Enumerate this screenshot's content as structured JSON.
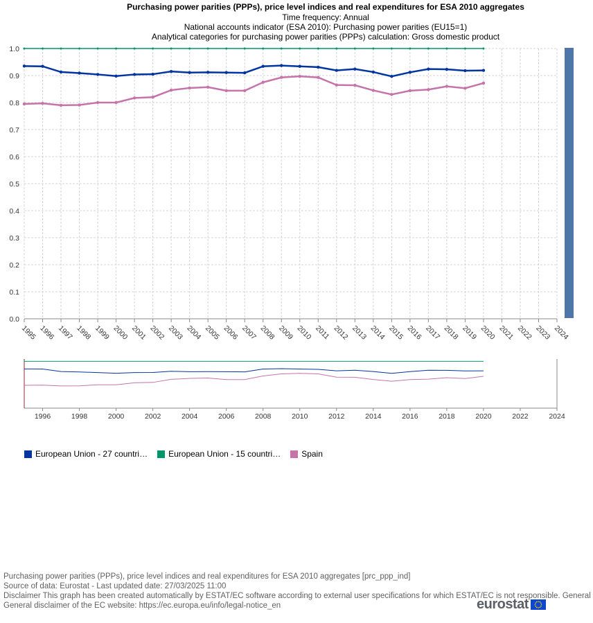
{
  "title": "Purchasing power parities (PPPs), price level indices and real expenditures for ESA 2010 aggregates",
  "subtitles": [
    "Time frequency:  Annual",
    "National accounts indicator (ESA 2010):  Purchasing power parities (EU15=1)",
    "Analytical categories for purchasing power parities (PPPs) calculation:  Gross domestic product"
  ],
  "chart_data": {
    "type": "line",
    "x": [
      1995,
      1996,
      1997,
      1998,
      1999,
      2000,
      2001,
      2002,
      2003,
      2004,
      2005,
      2006,
      2007,
      2008,
      2009,
      2010,
      2011,
      2012,
      2013,
      2014,
      2015,
      2016,
      2017,
      2018,
      2019,
      2020
    ],
    "xticks": [
      "1995",
      "1996",
      "1997",
      "1998",
      "1999",
      "2000",
      "2001",
      "2002",
      "2003",
      "2004",
      "2005",
      "2006",
      "2007",
      "2008",
      "2009",
      "2010",
      "2011",
      "2012",
      "2013",
      "2014",
      "2015",
      "2016",
      "2017",
      "2018",
      "2019",
      "2020",
      "2021",
      "2022",
      "2023",
      "2024"
    ],
    "xlim": [
      1995,
      2024
    ],
    "ylim": [
      0,
      1
    ],
    "yticks": [
      "0.0",
      "0.1",
      "0.2",
      "0.3",
      "0.4",
      "0.5",
      "0.6",
      "0.7",
      "0.8",
      "0.9",
      "1.0"
    ],
    "grid": true,
    "series": [
      {
        "name": "European Union - 27 countri…",
        "color": "#00349e",
        "values": [
          0.935,
          0.934,
          0.913,
          0.909,
          0.904,
          0.898,
          0.904,
          0.905,
          0.915,
          0.911,
          0.912,
          0.911,
          0.91,
          0.934,
          0.937,
          0.934,
          0.931,
          0.919,
          0.924,
          0.913,
          0.897,
          0.912,
          0.924,
          0.923,
          0.918,
          0.919
        ]
      },
      {
        "name": "European Union - 15 countri…",
        "color": "#00966c",
        "values": [
          1,
          1,
          1,
          1,
          1,
          1,
          1,
          1,
          1,
          1,
          1,
          1,
          1,
          1,
          1,
          1,
          1,
          1,
          1,
          1,
          1,
          1,
          1,
          1,
          1,
          1
        ]
      },
      {
        "name": "Spain",
        "color": "#c673aa",
        "values": [
          0.795,
          0.797,
          0.79,
          0.791,
          0.8,
          0.8,
          0.817,
          0.82,
          0.846,
          0.854,
          0.857,
          0.844,
          0.844,
          0.875,
          0.893,
          0.897,
          0.893,
          0.865,
          0.864,
          0.845,
          0.83,
          0.844,
          0.848,
          0.86,
          0.853,
          0.872
        ]
      }
    ],
    "navigator": {
      "xticks": [
        "1996",
        "1998",
        "2000",
        "2002",
        "2004",
        "2006",
        "2008",
        "2010",
        "2012",
        "2014",
        "2016",
        "2018",
        "2020",
        "2022",
        "2024"
      ]
    }
  },
  "footer": {
    "line1": "Purchasing power parities (PPPs), price level indices and real expenditures for ESA 2010 aggregates [prc_ppp_ind]",
    "line2": "Source of data: Eurostat - Last updated date: 27/03/2025 11:00",
    "line3": "Disclaimer This graph has been created automatically by ESTAT/EC software according to external user specifications for which ESTAT/EC is not responsible. General disclaimer of the EC website: https://ec.europa.eu/info/legal-notice_en",
    "line4": "General disclaimer of the EC website: https://ec.europa.eu/info/legal-notice_en",
    "logo_text": "eurostat",
    "logo_icon": "eu-flag-icon"
  }
}
